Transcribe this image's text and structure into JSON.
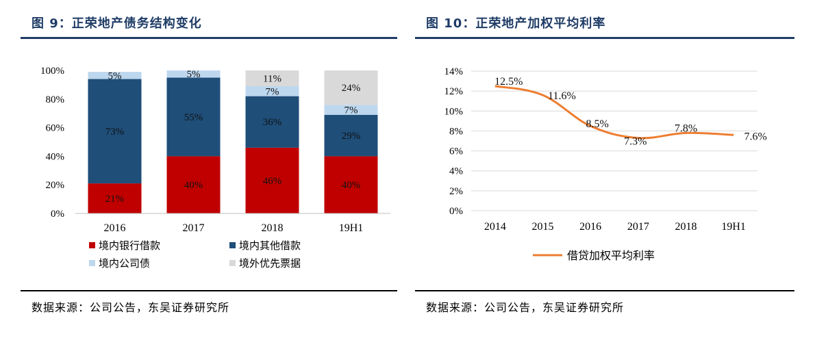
{
  "left": {
    "title": "图 9：正荣地产债务结构变化",
    "source": "数据来源：公司公告，东吴证券研究所"
  },
  "right": {
    "title": "图 10：正荣地产加权平均利率",
    "source": "数据来源：公司公告，东吴证券研究所"
  },
  "colors": {
    "title": "#1f3c66",
    "red": "#c00000",
    "navy": "#1f4e79",
    "lightblue": "#bdd7ee",
    "gray": "#d9d9d9",
    "line": "#ed7d31"
  },
  "chart_data": [
    {
      "type": "bar",
      "stacked": true,
      "title": "正荣地产债务结构变化",
      "categories": [
        "2016",
        "2017",
        "2018",
        "19H1"
      ],
      "ylim": [
        0,
        100
      ],
      "yticks": [
        "0%",
        "20%",
        "40%",
        "60%",
        "80%",
        "100%"
      ],
      "series": [
        {
          "name": "境内银行借款",
          "values": [
            21,
            40,
            46,
            40
          ],
          "labels": [
            "21%",
            "40%",
            "46%",
            "40%"
          ],
          "color": "#c00000"
        },
        {
          "name": "境内其他借款",
          "values": [
            73,
            55,
            36,
            29
          ],
          "labels": [
            "73%",
            "55%",
            "36%",
            "29%"
          ],
          "color": "#1f4e79"
        },
        {
          "name": "境内公司债",
          "values": [
            5,
            5,
            7,
            7
          ],
          "labels": [
            "5%",
            "5%",
            "7%",
            "7%"
          ],
          "color": "#bdd7ee"
        },
        {
          "name": "境外优先票据",
          "values": [
            0,
            0,
            11,
            24
          ],
          "labels": [
            "",
            "",
            "11%",
            "24%"
          ],
          "color": "#d9d9d9"
        }
      ]
    },
    {
      "type": "line",
      "title": "正荣地产加权平均利率",
      "x": [
        "2014",
        "2015",
        "2016",
        "2017",
        "2018",
        "19H1"
      ],
      "ylim": [
        0,
        14
      ],
      "yticks": [
        "0%",
        "2%",
        "4%",
        "6%",
        "8%",
        "10%",
        "12%",
        "14%"
      ],
      "series": [
        {
          "name": "借贷加权平均利率",
          "values": [
            12.5,
            11.6,
            8.5,
            7.3,
            7.8,
            7.6
          ],
          "labels": [
            "12.5%",
            "11.6%",
            "8.5%",
            "7.3%",
            "7.8%",
            "7.6%"
          ],
          "color": "#ed7d31"
        }
      ]
    }
  ]
}
